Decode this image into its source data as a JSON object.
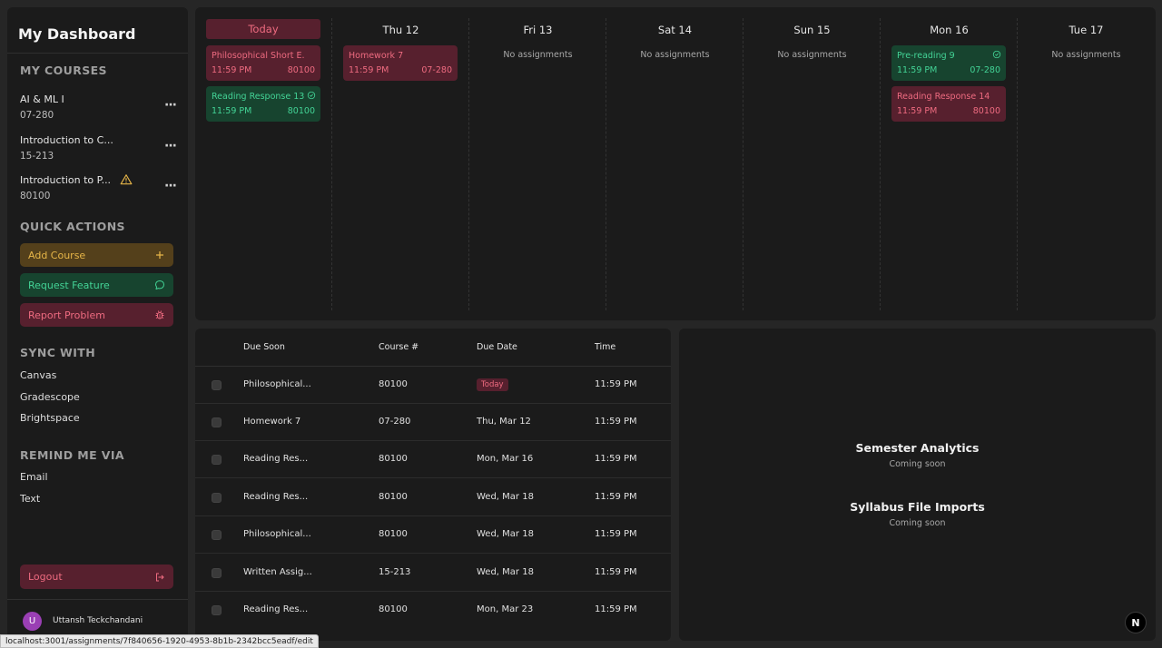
{
  "sidebar": {
    "title": "My Dashboard",
    "my_courses_title": "MY COURSES",
    "courses": [
      {
        "name": "AI & ML I",
        "code": "07-280",
        "warning": false
      },
      {
        "name": "Introduction to C...",
        "code": "15-213",
        "warning": false
      },
      {
        "name": "Introduction to P...",
        "code": "80100",
        "warning": true
      }
    ],
    "more_icon_glyph": "···",
    "quick_actions_title": "QUICK ACTIONS",
    "quick_actions": {
      "add_course": "Add Course",
      "request_feature": "Request Feature",
      "report_problem": "Report Problem"
    },
    "sync_title": "SYNC WITH",
    "sync": [
      "Canvas",
      "Gradescope",
      "Brightspace"
    ],
    "remind_title": "REMIND ME VIA",
    "remind": [
      "Email",
      "Text"
    ],
    "logout": "Logout",
    "user": {
      "initial": "U",
      "name": "Uttansh Teckchandani"
    }
  },
  "calendar": {
    "days": [
      {
        "label": "Today",
        "is_today": true,
        "empty_text": ""
      },
      {
        "label": "Thu 12",
        "is_today": false,
        "empty_text": ""
      },
      {
        "label": "Fri 13",
        "is_today": false,
        "empty_text": "No assignments"
      },
      {
        "label": "Sat 14",
        "is_today": false,
        "empty_text": "No assignments"
      },
      {
        "label": "Sun 15",
        "is_today": false,
        "empty_text": "No assignments"
      },
      {
        "label": "Mon 16",
        "is_today": false,
        "empty_text": ""
      },
      {
        "label": "Tue 17",
        "is_today": false,
        "empty_text": "No assignments"
      }
    ],
    "cards": {
      "today_1": {
        "title": "Philosophical Short E...",
        "time": "11:59 PM",
        "course": "80100",
        "status": "red"
      },
      "today_2": {
        "title": "Reading Response 13",
        "time": "11:59 PM",
        "course": "80100",
        "status": "green"
      },
      "thu_1": {
        "title": "Homework 7",
        "time": "11:59 PM",
        "course": "07-280",
        "status": "red"
      },
      "mon_1": {
        "title": "Pre-reading 9",
        "time": "11:59 PM",
        "course": "07-280",
        "status": "green"
      },
      "mon_2": {
        "title": "Reading Response 14",
        "time": "11:59 PM",
        "course": "80100",
        "status": "red"
      }
    }
  },
  "table": {
    "headers": {
      "due_soon": "Due Soon",
      "course": "Course #",
      "due_date": "Due Date",
      "time": "Time"
    },
    "rows": [
      {
        "name": "Philosophical...",
        "course": "80100",
        "date": "Today",
        "time": "11:59 PM"
      },
      {
        "name": "Homework 7",
        "course": "07-280",
        "date": "Thu, Mar 12",
        "time": "11:59 PM"
      },
      {
        "name": "Reading Res...",
        "course": "80100",
        "date": "Mon, Mar 16",
        "time": "11:59 PM"
      },
      {
        "name": "Reading Res...",
        "course": "80100",
        "date": "Wed, Mar 18",
        "time": "11:59 PM"
      },
      {
        "name": "Philosophical...",
        "course": "80100",
        "date": "Wed, Mar 18",
        "time": "11:59 PM"
      },
      {
        "name": "Written Assig...",
        "course": "15-213",
        "date": "Wed, Mar 18",
        "time": "11:59 PM"
      },
      {
        "name": "Reading Res...",
        "course": "80100",
        "date": "Mon, Mar 23",
        "time": "11:59 PM"
      }
    ]
  },
  "analytics": {
    "semester_title": "Semester Analytics",
    "semester_sub": "Coming soon",
    "syllabus_title": "Syllabus File Imports",
    "syllabus_sub": "Coming soon",
    "next_badge": "N"
  },
  "statusbar": "localhost:3001/assignments/7f840656-1920-4953-8b1b-2342bcc5eadf/edit",
  "colors": {
    "background": "#262626",
    "panel": "#1b1b1b",
    "red_bg": "#57202e",
    "red_fg": "#ee6b80",
    "green_bg": "#17442f",
    "green_fg": "#43d396",
    "amber_bg": "#54401b",
    "amber_fg": "#e6b548"
  }
}
